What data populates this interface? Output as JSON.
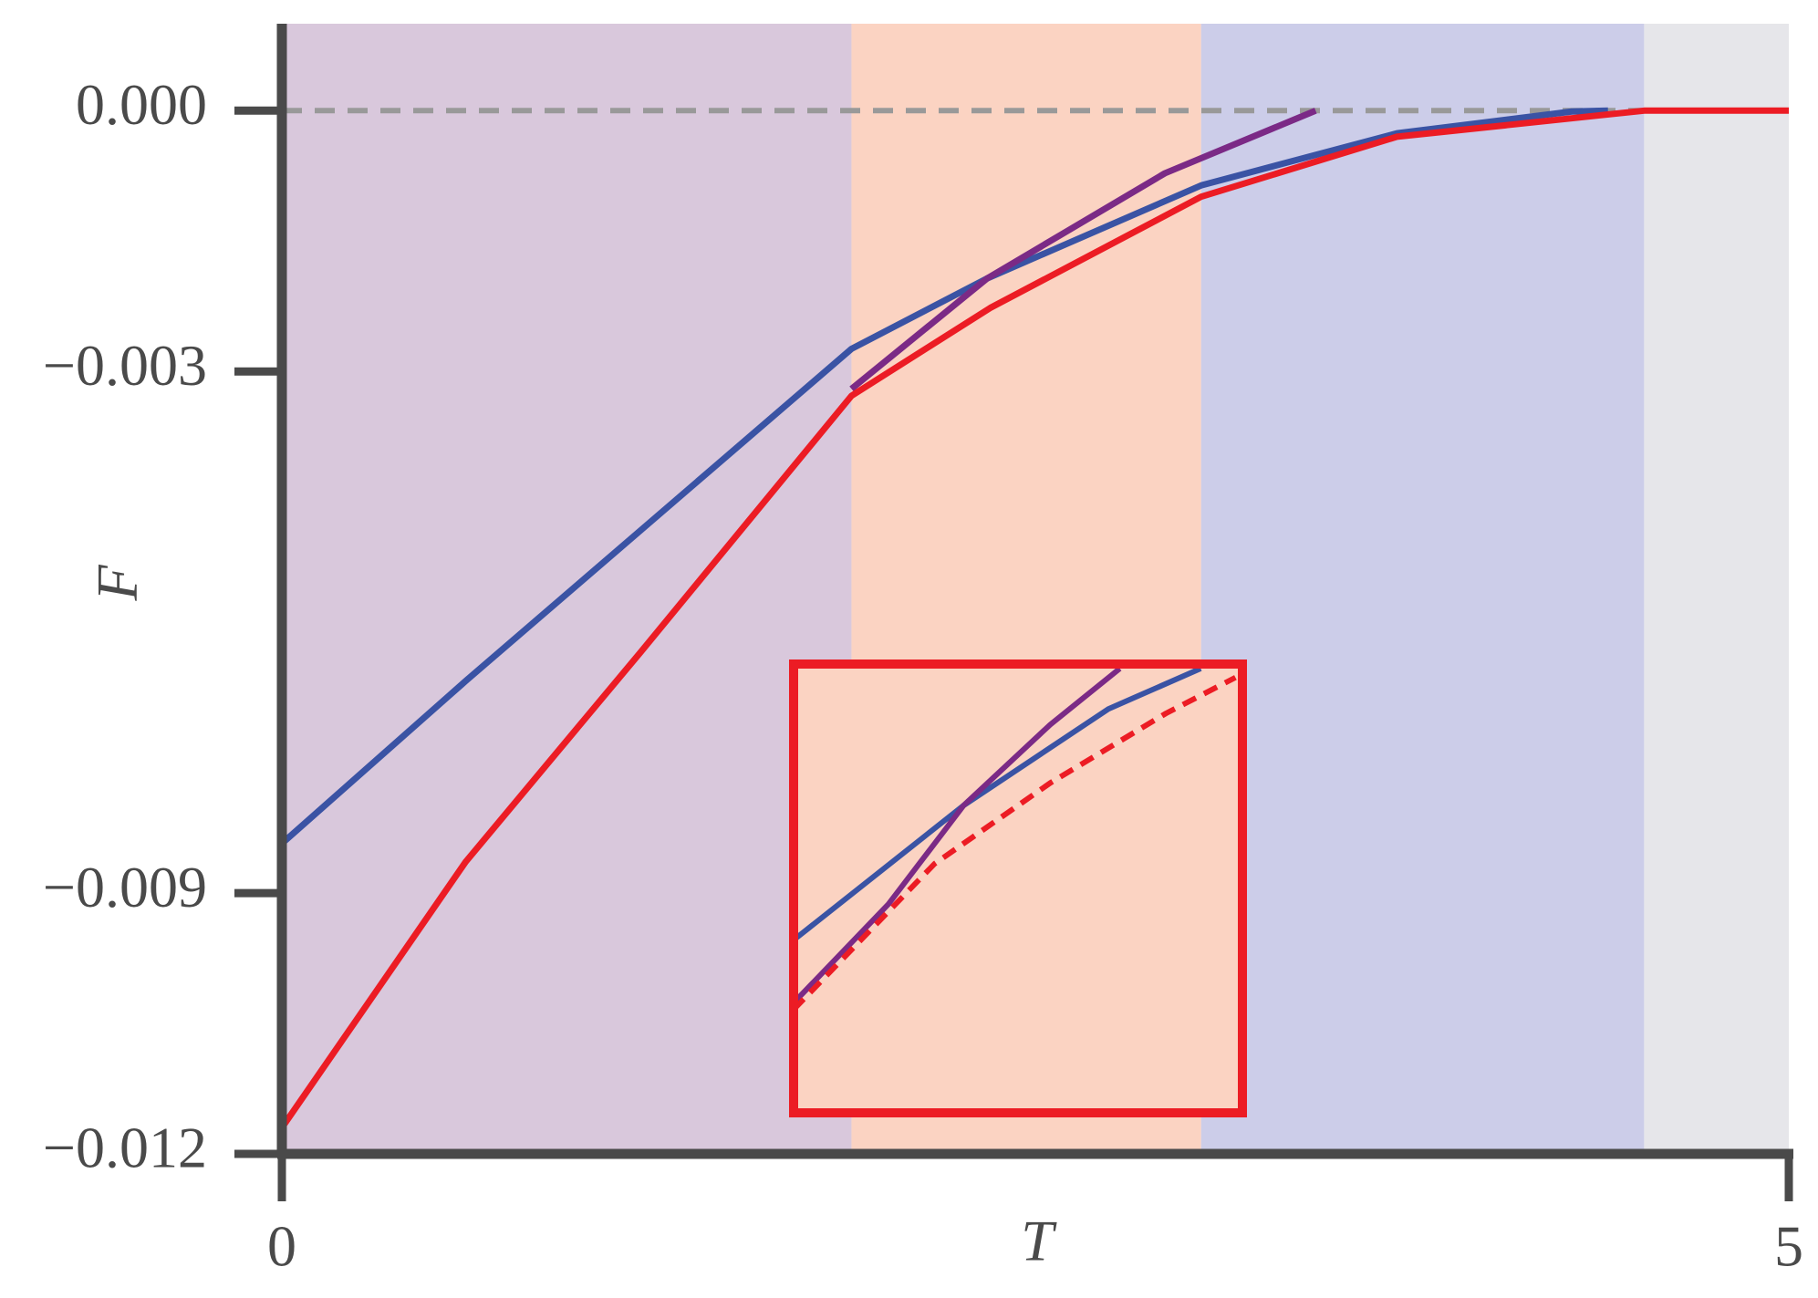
{
  "chart_data": [
    {
      "type": "line",
      "xlabel": "T",
      "ylabel": "F",
      "xlim": [
        0,
        5
      ],
      "ylim": [
        -0.012,
        0.001
      ],
      "xticks": [
        0,
        5
      ],
      "yticks": [
        {
          "value": 0,
          "label": "0.000"
        },
        {
          "value": -0.003,
          "label": "−0.003"
        },
        {
          "value": -0.009,
          "label": "−0.009"
        },
        {
          "value": -0.012,
          "label": "−0.012"
        }
      ],
      "reference_line": 0,
      "regions": [
        {
          "start": 0,
          "end": 1.89,
          "color": "#d9c8dc"
        },
        {
          "start": 1.89,
          "end": 3.05,
          "color": "#fbd3c2"
        },
        {
          "start": 3.05,
          "end": 4.52,
          "color": "#cccde9"
        },
        {
          "start": 4.52,
          "end": 5,
          "color": "#e6e6ea"
        }
      ],
      "series": [
        {
          "color": "#3a53a4",
          "x": [
            0,
            0.61,
            1.89,
            2.34,
            3.05,
            3.7,
            4.28,
            4.4
          ],
          "values": [
            -0.00843,
            -0.00656,
            -0.00274,
            -0.00193,
            -0.00086,
            -0.00026,
            -1e-05,
            0
          ]
        },
        {
          "color": "#7b2a86",
          "x": [
            1.89,
            2.34,
            2.93,
            3.43
          ],
          "values": [
            -0.0032,
            -0.00193,
            -0.00072,
            0
          ]
        },
        {
          "color": "#ec1c24",
          "x": [
            0,
            0.61,
            1.19,
            1.89,
            2.35,
            3.05,
            3.7,
            4.52,
            5
          ],
          "values": [
            -0.0117,
            -0.00864,
            -0.00623,
            -0.00328,
            -0.00227,
            -0.00099,
            -0.0003,
            0,
            0
          ]
        }
      ]
    },
    {
      "type": "line",
      "inset": true,
      "background": "#fbd3c2",
      "border_color": "#ec1c24",
      "xlim": [
        1.89,
        2.6
      ],
      "ylim": [
        -0.0035,
        -0.0015
      ],
      "series": [
        {
          "color": "#3a53a4",
          "x": [
            1.89,
            2.159,
            2.388,
            2.534
          ],
          "values": [
            -0.00273,
            -0.00213,
            -0.0017,
            -0.00152
          ]
        },
        {
          "color": "#7b2a86",
          "x": [
            1.89,
            2.04,
            2.159,
            2.296,
            2.406
          ],
          "values": [
            -0.00301,
            -0.00257,
            -0.00213,
            -0.00177,
            -0.00152
          ]
        },
        {
          "color": "#ec1c24",
          "dashed": true,
          "x": [
            1.89,
            2.113,
            2.296,
            2.479,
            2.589
          ],
          "values": [
            -0.00304,
            -0.00239,
            -0.00203,
            -0.00172,
            -0.00156
          ]
        }
      ]
    }
  ]
}
